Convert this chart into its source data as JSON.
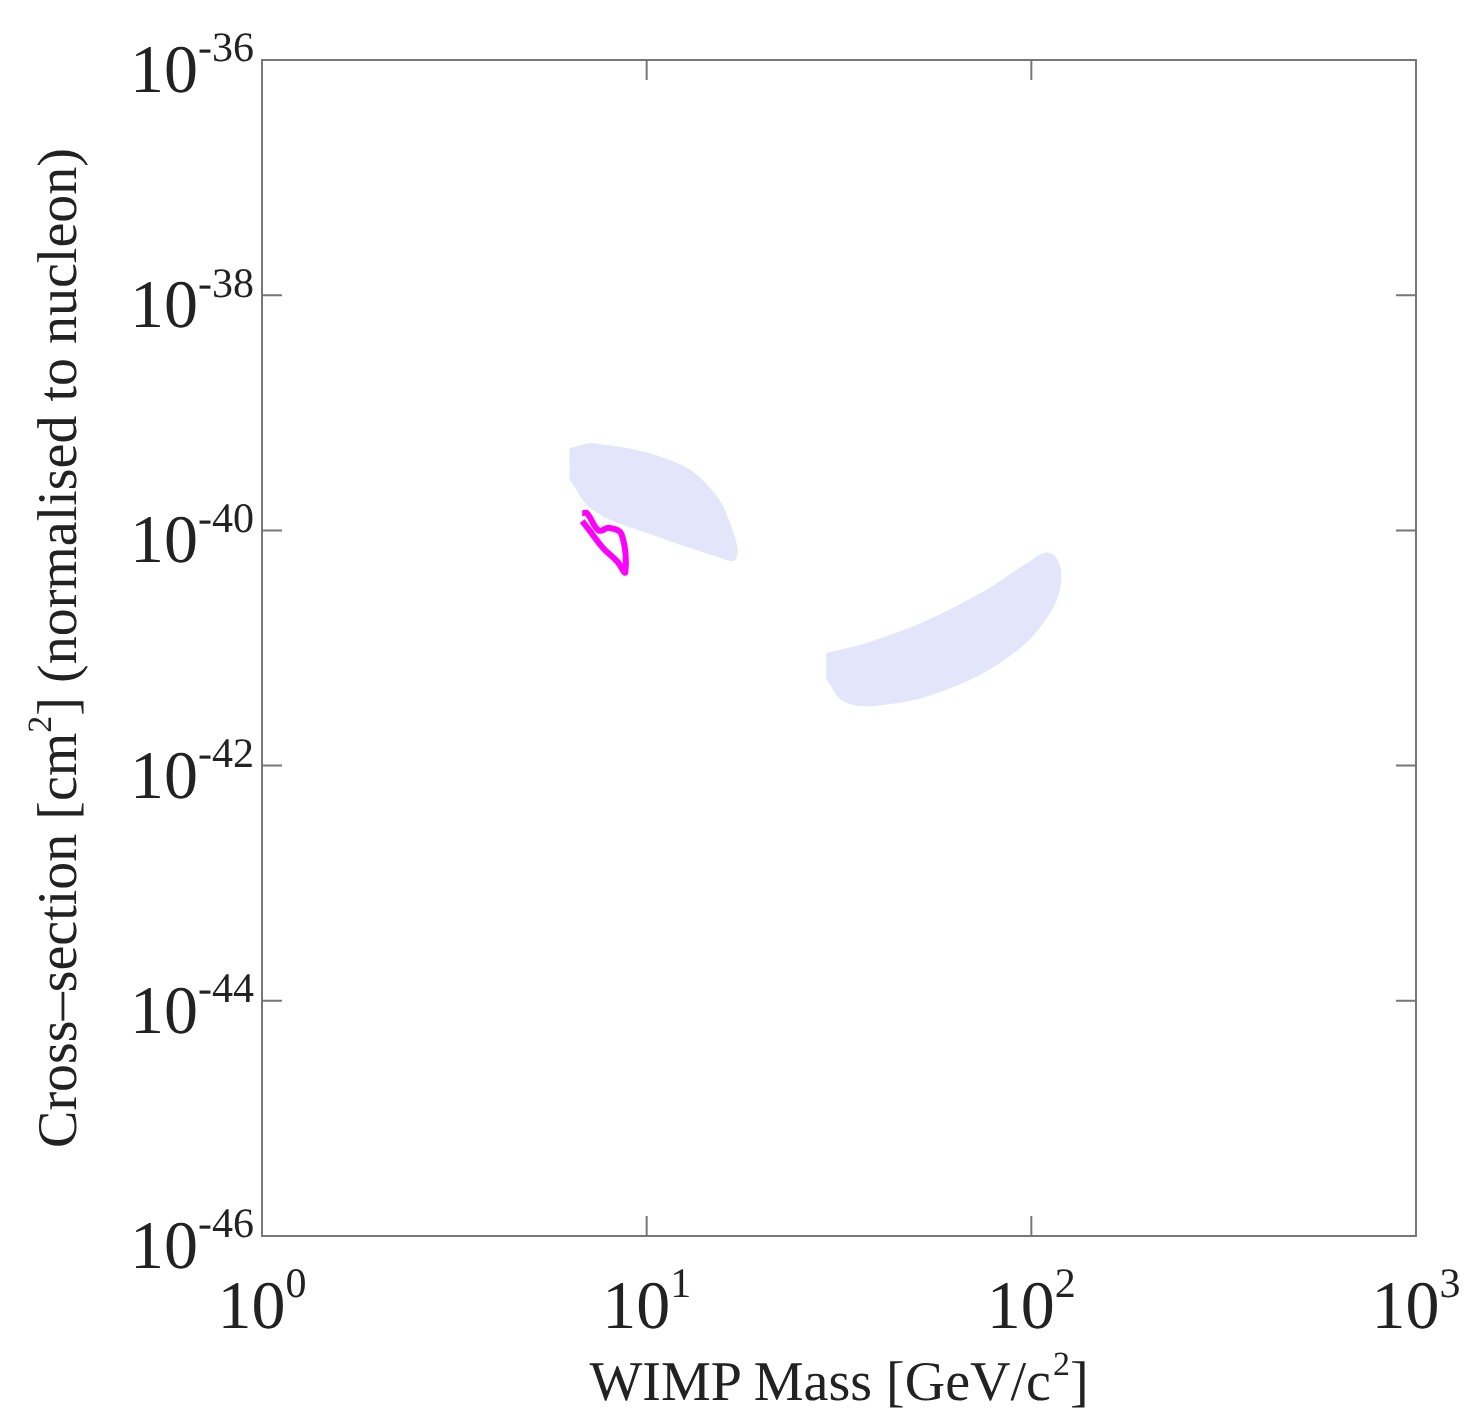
{
  "chart_data": {
    "type": "area",
    "xlabel": "WIMP Mass [GeV/c$^{2}$]",
    "ylabel": "Cross–section [cm$^{2}$] (normalised to nucleon)",
    "log": "xy",
    "grid": false,
    "marker": "none",
    "legend": false,
    "xlim": [
      1,
      1000
    ],
    "xticks": [
      {
        "value": 1,
        "label": "10$^{0}$"
      },
      {
        "value": 10,
        "label": "10$^{1}$"
      },
      {
        "value": 100,
        "label": "10$^{2}$"
      },
      {
        "value": 1000,
        "label": "10$^{3}$"
      }
    ],
    "ylim": [
      1e-46,
      1e-36
    ],
    "yticks": [
      {
        "value": 1e-46,
        "label": "10$^{-46}$"
      },
      {
        "value": 1e-44,
        "label": "10$^{-44}$"
      },
      {
        "value": 1e-42,
        "label": "10$^{-42}$"
      },
      {
        "value": 1e-40,
        "label": "10$^{-40}$"
      },
      {
        "value": 1e-38,
        "label": "10$^{-38}$"
      },
      {
        "value": 1e-36,
        "label": "10$^{-36}$"
      }
    ],
    "series": [
      {
        "color": "#e3e6fb",
        "x": [
          6.3,
          7.3,
          11.7,
          14.5,
          16.3,
          17.0,
          14.8,
          10.4,
          7.3,
          6.3
        ],
        "values": [
          4.9e-40,
          5.4e-40,
          3.8e-40,
          2.3e-40,
          1.2e-40,
          5.8e-41,
          6.3e-41,
          9.3e-41,
          1.5e-40,
          2.8e-40
        ]
      },
      {
        "color": "#e3e6fb",
        "x": [
          29.3,
          37.9,
          54,
          77,
          97,
          112,
          119,
          109,
          86,
          61,
          43,
          33,
          29.3
        ],
        "values": [
          8.9e-42,
          1.1e-41,
          1.7e-41,
          3.1e-41,
          5.1e-41,
          6.3e-41,
          3.9e-41,
          1.8e-41,
          8.3e-42,
          4.6e-42,
          3.4e-42,
          3.5e-42,
          5.6e-42
        ]
      },
      {
        "type": "line",
        "color": "#ff00ff",
        "x": [
          6.8,
          7.0,
          7.5,
          8.0,
          8.6,
          8.8,
          8.4,
          7.7,
          7.1,
          6.8
        ],
        "values": [
          1.4e-40,
          1.4e-40,
          1e-40,
          1.05e-40,
          9.3e-41,
          4.4e-41,
          5.4e-41,
          7.1e-41,
          1e-40,
          1.2e-40
        ]
      }
    ]
  }
}
